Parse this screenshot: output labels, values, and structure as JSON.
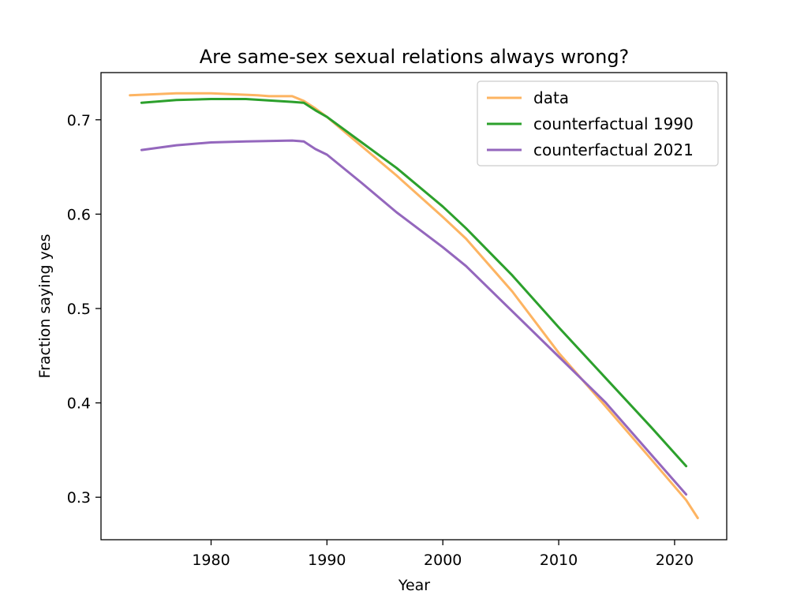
{
  "chart_data": {
    "type": "line",
    "title": "Are same-sex sexual relations always wrong?",
    "xlabel": "Year",
    "ylabel": "Fraction saying yes",
    "xlim": [
      1970.5,
      2024.5
    ],
    "ylim": [
      0.255,
      0.75
    ],
    "xticks": [
      1980,
      1990,
      2000,
      2010,
      2020
    ],
    "yticks": [
      0.3,
      0.4,
      0.5,
      0.6,
      0.7
    ],
    "ytick_labels": [
      "0.3",
      "0.4",
      "0.5",
      "0.6",
      "0.7"
    ],
    "grid": false,
    "legend_position": "top-right",
    "series": [
      {
        "name": "data",
        "color": "#fdb462",
        "x": [
          1973,
          1975,
          1977,
          1980,
          1982,
          1984,
          1985,
          1987,
          1988,
          1989,
          1990,
          1993,
          1996,
          2000,
          2002,
          2006,
          2010,
          2014,
          2018,
          2021,
          2022
        ],
        "y": [
          0.726,
          0.727,
          0.728,
          0.728,
          0.727,
          0.726,
          0.725,
          0.725,
          0.72,
          0.712,
          0.703,
          0.672,
          0.641,
          0.597,
          0.574,
          0.518,
          0.453,
          0.397,
          0.34,
          0.297,
          0.278
        ]
      },
      {
        "name": "counterfactual 1990",
        "color": "#2ca02c",
        "x": [
          1974,
          1977,
          1980,
          1983,
          1987,
          1988,
          1989,
          1990,
          1993,
          1996,
          2000,
          2002,
          2006,
          2010,
          2014,
          2018,
          2021
        ],
        "y": [
          0.718,
          0.721,
          0.722,
          0.722,
          0.719,
          0.718,
          0.71,
          0.703,
          0.676,
          0.649,
          0.608,
          0.585,
          0.535,
          0.48,
          0.427,
          0.374,
          0.333
        ]
      },
      {
        "name": "counterfactual 2021",
        "color": "#9467bd",
        "x": [
          1974,
          1977,
          1980,
          1983,
          1987,
          1988,
          1989,
          1990,
          1993,
          1996,
          2000,
          2002,
          2006,
          2010,
          2014,
          2018,
          2021
        ],
        "y": [
          0.668,
          0.673,
          0.676,
          0.677,
          0.678,
          0.677,
          0.669,
          0.663,
          0.633,
          0.602,
          0.565,
          0.545,
          0.497,
          0.449,
          0.401,
          0.345,
          0.303
        ]
      }
    ]
  }
}
